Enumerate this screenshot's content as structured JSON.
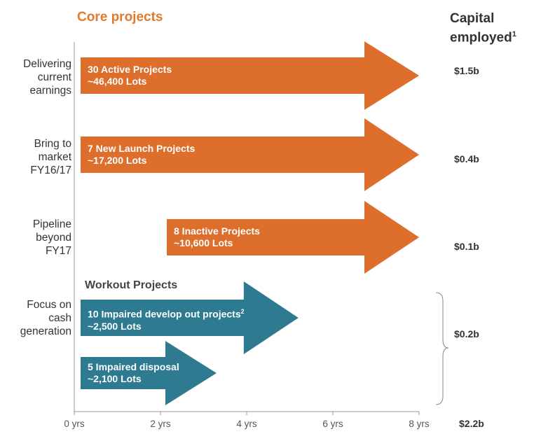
{
  "header": {
    "core_title": "Core projects",
    "capital_title_line1": "Capital",
    "capital_title_line2": "employed",
    "capital_footnote": "1"
  },
  "rows": [
    {
      "label_lines": [
        "Delivering",
        "current",
        "earnings"
      ],
      "capital": "$1.5b"
    },
    {
      "label_lines": [
        "Bring to",
        "market",
        "FY16/17"
      ],
      "capital": "$0.4b"
    },
    {
      "label_lines": [
        "Pipeline",
        "beyond",
        "FY17"
      ],
      "capital": "$0.1b"
    },
    {
      "label_lines": [
        "Focus on",
        "cash",
        "generation"
      ],
      "capital": "$0.2b"
    }
  ],
  "workout_title": "Workout Projects",
  "arrows": [
    {
      "line1": "30 Active Projects",
      "line2": "~46,400 Lots",
      "start_years": 0,
      "end_years": 8,
      "color": "#DD6E2C"
    },
    {
      "line1": "7 New Launch Projects",
      "line2": "~17,200 Lots",
      "start_years": 0,
      "end_years": 8,
      "color": "#DD6E2C"
    },
    {
      "line1": "8 Inactive Projects",
      "line2": "~10,600 Lots",
      "start_years": 2,
      "end_years": 8,
      "color": "#DD6E2C"
    },
    {
      "line1": "10 Impaired develop out projects",
      "footnote": "2",
      "line2": "~2,500 Lots",
      "start_years": 0,
      "end_years": 5.2,
      "color": "#2E7A91"
    },
    {
      "line1": "5 Impaired disposal",
      "line2": "~2,100 Lots",
      "start_years": 0,
      "end_years": 3.3,
      "color": "#2E7A91"
    }
  ],
  "axis": {
    "ticks": [
      "0 yrs",
      "2 yrs",
      "4 yrs",
      "6 yrs",
      "8 yrs"
    ],
    "tick_values": [
      0,
      2,
      4,
      6,
      8
    ]
  },
  "total_capital": "$2.2b",
  "colors": {
    "core": "#DD6E2C",
    "workout": "#2E7A91",
    "core_title": "#E07A2F",
    "axis": "#999999"
  }
}
